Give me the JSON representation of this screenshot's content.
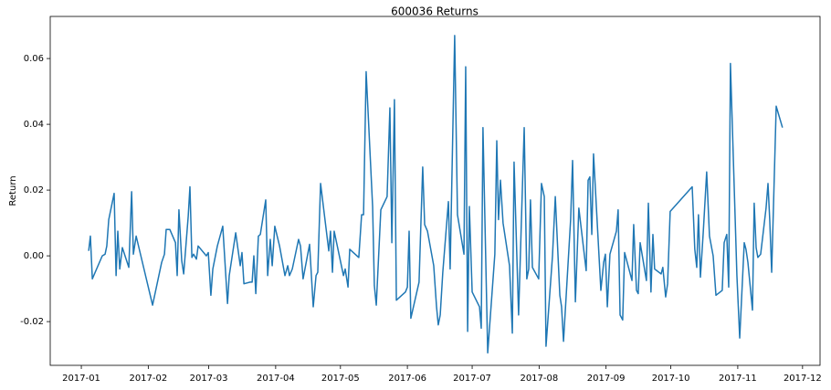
{
  "chart_data": {
    "type": "line",
    "title": "600036 Returns",
    "y_label": "Return",
    "color": "#1f77b4",
    "x": [
      3.4,
      4.2,
      5.1,
      9.7,
      11.0,
      11.8,
      12.7,
      15.2,
      16.1,
      16.9,
      17.8,
      19.0,
      22.0,
      23.3,
      24.1,
      25.4,
      33.0,
      37.2,
      38.5,
      39.3,
      41.0,
      43.6,
      44.4,
      45.2,
      46.5,
      47.4,
      49.5,
      50.3,
      51.2,
      52.0,
      53.3,
      54.1,
      57.9,
      58.8,
      60.0,
      60.9,
      63.0,
      65.5,
      67.7,
      68.5,
      71.5,
      73.6,
      74.4,
      75.3,
      78.2,
      79.1,
      79.9,
      80.8,
      82.0,
      82.9,
      85.4,
      86.3,
      87.5,
      88.4,
      89.6,
      91.8,
      94.3,
      95.6,
      96.4,
      97.7,
      100.6,
      101.5,
      102.7,
      105.7,
      107.4,
      108.7,
      109.5,
      110.8,
      114.6,
      115.4,
      116.3,
      117.1,
      121.4,
      122.2,
      123.5,
      124.3,
      128.5,
      129.8,
      130.7,
      131.9,
      134.9,
      135.7,
      136.6,
      138.7,
      141.6,
      142.9,
      143.8,
      145.0,
      145.9,
      150.1,
      151.0,
      151.8,
      152.6,
      156.4,
      158.1,
      159.0,
      160.3,
      163.2,
      164.5,
      165.3,
      166.2,
      167.4,
      170.0,
      170.8,
      172.9,
      174.2,
      177.2,
      178.0,
      178.9,
      179.7,
      181.0,
      184.4,
      185.2,
      186.0,
      188.2,
      191.5,
      192.4,
      193.2,
      194.1,
      195.3,
      198.3,
      199.6,
      200.4,
      202.5,
      205.1,
      206.3,
      207.2,
      208.0,
      208.9,
      211.8,
      213.1,
      214.4,
      215.2,
      218.2,
      219.5,
      221.6,
      222.4,
      223.3,
      226.6,
      227.5,
      228.8,
      230.4,
      233.8,
      234.7,
      235.5,
      236.4,
      237.2,
      240.6,
      241.9,
      242.7,
      243.6,
      244.8,
      247.8,
      248.6,
      249.5,
      250.7,
      251.6,
      255.0,
      255.8,
      257.1,
      257.9,
      258.8,
      261.7,
      262.6,
      263.8,
      264.7,
      265.5,
      268.5,
      269.3,
      270.6,
      271.5,
      272.7,
      282.9,
      284.1,
      285.0,
      285.8,
      286.7,
      288.0,
      289.6,
      290.9,
      292.6,
      293.9,
      296.8,
      297.7,
      298.9,
      299.8,
      300.6,
      303.6,
      304.9,
      307.0,
      307.8,
      308.7,
      310.8,
      311.6,
      312.5,
      313.3,
      314.6,
      317.1,
      318.0,
      318.8,
      319.7,
      321.8,
      324.7
    ],
    "values": [
      0.0015,
      0.006,
      -0.007,
      0.0,
      0.0005,
      0.003,
      0.011,
      0.019,
      -0.006,
      0.0075,
      -0.004,
      0.0025,
      -0.0035,
      0.0195,
      0.0005,
      0.006,
      -0.015,
      -0.002,
      0.0005,
      0.008,
      0.008,
      0.004,
      -0.006,
      0.014,
      -0.0015,
      -0.0055,
      0.012,
      0.021,
      -0.0005,
      0.0005,
      -0.001,
      0.003,
      0.0,
      0.001,
      -0.012,
      -0.004,
      0.003,
      0.009,
      -0.0145,
      -0.006,
      0.007,
      -0.003,
      0.001,
      -0.0085,
      -0.008,
      -0.008,
      0.0,
      -0.0115,
      0.006,
      0.0065,
      0.017,
      -0.006,
      0.005,
      -0.003,
      0.009,
      0.003,
      -0.006,
      -0.003,
      -0.006,
      -0.004,
      0.005,
      0.003,
      -0.007,
      0.0035,
      -0.0155,
      -0.006,
      -0.005,
      0.022,
      0.0015,
      0.0075,
      -0.005,
      0.0075,
      -0.006,
      -0.004,
      -0.0095,
      0.002,
      -0.0005,
      0.0125,
      0.0125,
      0.056,
      0.015,
      -0.009,
      -0.015,
      0.014,
      0.018,
      0.045,
      0.004,
      0.0475,
      -0.0135,
      -0.011,
      -0.0095,
      0.0075,
      -0.019,
      -0.008,
      0.027,
      0.0095,
      0.0075,
      -0.003,
      -0.0155,
      -0.021,
      -0.018,
      -0.005,
      0.0165,
      -0.004,
      0.067,
      0.0125,
      0.0005,
      0.0575,
      -0.023,
      0.015,
      -0.011,
      -0.0155,
      -0.022,
      0.039,
      -0.0295,
      0.0005,
      0.035,
      0.011,
      0.023,
      0.01,
      -0.003,
      -0.0235,
      0.0285,
      -0.018,
      0.039,
      -0.007,
      -0.004,
      0.017,
      -0.0035,
      -0.007,
      0.022,
      0.018,
      -0.0275,
      0.0,
      0.018,
      -0.012,
      -0.0155,
      -0.026,
      0.011,
      0.029,
      -0.014,
      0.0145,
      -0.0045,
      0.023,
      0.024,
      0.0065,
      0.031,
      -0.0105,
      -0.002,
      0.0005,
      -0.0155,
      0.0005,
      0.0075,
      0.014,
      -0.018,
      -0.0195,
      0.001,
      -0.0075,
      0.0095,
      -0.0105,
      -0.0115,
      0.004,
      -0.0075,
      0.016,
      -0.011,
      0.0065,
      -0.004,
      -0.0055,
      -0.0035,
      -0.0125,
      -0.0085,
      0.0135,
      0.021,
      0.002,
      -0.0035,
      0.0125,
      -0.0065,
      0.007,
      0.0255,
      0.006,
      0.0,
      -0.012,
      -0.0105,
      0.004,
      0.0065,
      -0.0095,
      0.0585,
      -0.006,
      -0.025,
      0.004,
      0.002,
      -0.002,
      -0.0165,
      0.016,
      0.0025,
      -0.0005,
      0.0005,
      0.0145,
      0.022,
      0.011,
      -0.005,
      0.0455,
      0.039
    ],
    "xlim": [
      -14.4,
      342.1
    ],
    "xticks": [
      {
        "value": 0,
        "label": "2017-01"
      },
      {
        "value": 31,
        "label": "2017-02"
      },
      {
        "value": 59,
        "label": "2017-03"
      },
      {
        "value": 90,
        "label": "2017-04"
      },
      {
        "value": 120,
        "label": "2017-05"
      },
      {
        "value": 151,
        "label": "2017-06"
      },
      {
        "value": 181,
        "label": "2017-07"
      },
      {
        "value": 212,
        "label": "2017-08"
      },
      {
        "value": 243,
        "label": "2017-09"
      },
      {
        "value": 273,
        "label": "2017-10"
      },
      {
        "value": 304,
        "label": "2017-11"
      },
      {
        "value": 334,
        "label": "2017-12"
      }
    ],
    "ylim": [
      -0.0333,
      0.0728
    ],
    "yticks": [
      -0.02,
      {
        "value": 0,
        "label": "0.00"
      },
      0.02,
      0.04,
      0.06
    ]
  }
}
